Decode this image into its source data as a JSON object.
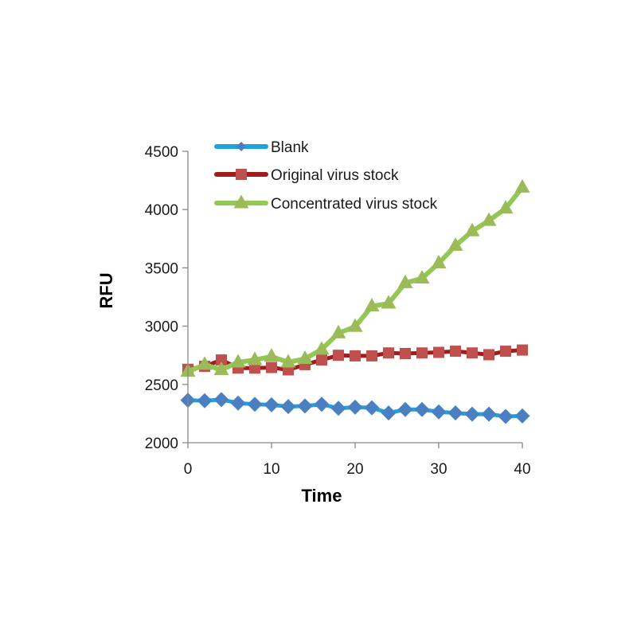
{
  "chart_data": {
    "type": "line",
    "title": "",
    "xlabel": "Time",
    "ylabel": "RFU",
    "xlim": [
      0,
      40
    ],
    "ylim": [
      2000,
      4500
    ],
    "x_ticks": [
      0,
      10,
      20,
      30,
      40
    ],
    "y_ticks": [
      2000,
      2500,
      3000,
      3500,
      4000,
      4500
    ],
    "x_tick_labels": [
      "0",
      "10",
      "20",
      "30",
      "40"
    ],
    "y_tick_labels": [
      "2000",
      "2500",
      "3000",
      "3500",
      "4000",
      "4500"
    ],
    "legend_position": "top",
    "grid": false,
    "x": [
      0,
      2,
      4,
      6,
      8,
      10,
      12,
      14,
      16,
      18,
      20,
      22,
      24,
      26,
      28,
      30,
      32,
      34,
      36,
      38,
      40
    ],
    "series": [
      {
        "name": "Blank",
        "marker": "diamond",
        "line_color": "#1fa3dc",
        "marker_color": "#4a7fc1",
        "values": [
          2365,
          2360,
          2370,
          2340,
          2330,
          2325,
          2310,
          2315,
          2330,
          2295,
          2305,
          2300,
          2255,
          2285,
          2285,
          2265,
          2255,
          2245,
          2245,
          2225,
          2230
        ]
      },
      {
        "name": "Original virus stock",
        "marker": "square",
        "line_color": "#a31c1c",
        "marker_color": "#c0504d",
        "values": [
          2630,
          2655,
          2710,
          2640,
          2640,
          2645,
          2625,
          2670,
          2710,
          2750,
          2745,
          2745,
          2770,
          2765,
          2770,
          2775,
          2785,
          2770,
          2755,
          2785,
          2795
        ]
      },
      {
        "name": "Concentrated virus stock",
        "marker": "triangle",
        "line_color": "#92c853",
        "marker_color": "#9bbb59",
        "values": [
          2610,
          2670,
          2625,
          2690,
          2710,
          2740,
          2690,
          2720,
          2800,
          2940,
          2995,
          3170,
          3195,
          3370,
          3410,
          3540,
          3690,
          3815,
          3905,
          4010,
          4190
        ]
      }
    ]
  }
}
